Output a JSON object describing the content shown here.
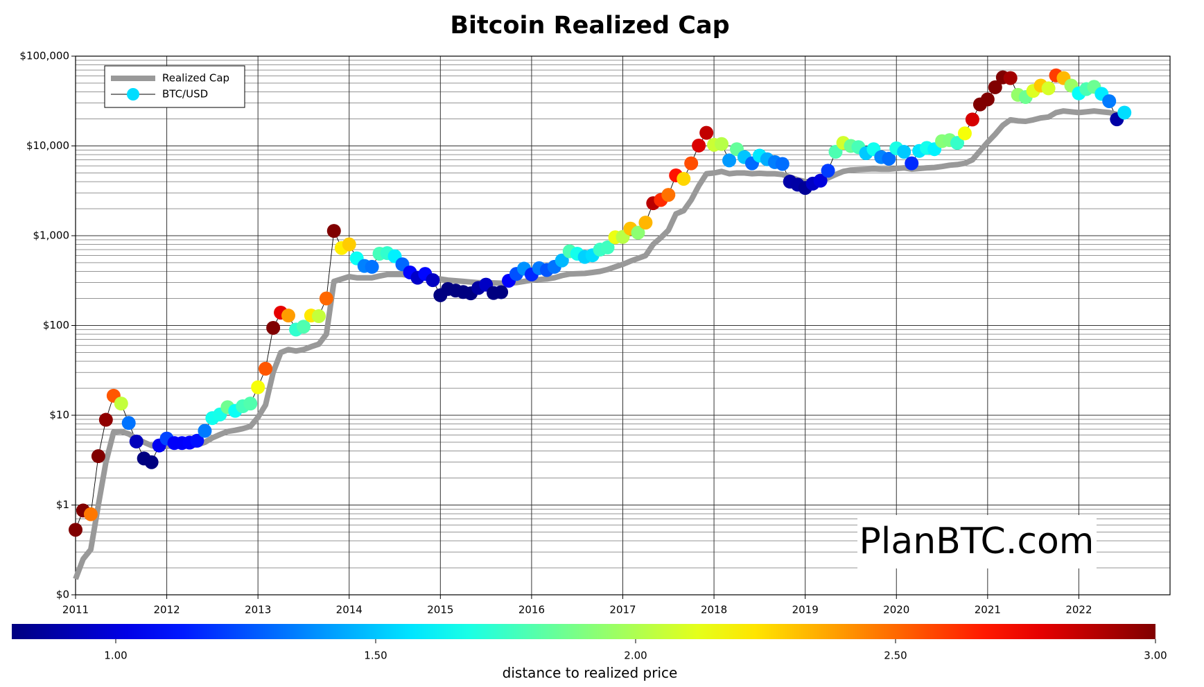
{
  "chart_data": {
    "type": "line_scatter",
    "title": "Bitcoin Realized Cap",
    "x": [
      2011,
      2011.083,
      2011.167,
      2011.25,
      2011.333,
      2011.417,
      2011.5,
      2011.583,
      2011.667,
      2011.75,
      2011.833,
      2011.917,
      2012,
      2012.083,
      2012.167,
      2012.25,
      2012.333,
      2012.417,
      2012.5,
      2012.583,
      2012.667,
      2012.75,
      2012.833,
      2012.917,
      2013,
      2013.083,
      2013.167,
      2013.25,
      2013.333,
      2013.417,
      2013.5,
      2013.583,
      2013.667,
      2013.75,
      2013.833,
      2013.917,
      2014,
      2014.083,
      2014.167,
      2014.25,
      2014.333,
      2014.417,
      2014.5,
      2014.583,
      2014.667,
      2014.75,
      2014.833,
      2014.917,
      2015,
      2015.083,
      2015.167,
      2015.25,
      2015.333,
      2015.417,
      2015.5,
      2015.583,
      2015.667,
      2015.75,
      2015.833,
      2015.917,
      2016,
      2016.083,
      2016.167,
      2016.25,
      2016.333,
      2016.417,
      2016.5,
      2016.583,
      2016.667,
      2016.75,
      2016.833,
      2016.917,
      2017,
      2017.083,
      2017.167,
      2017.25,
      2017.333,
      2017.417,
      2017.5,
      2017.583,
      2017.667,
      2017.75,
      2017.833,
      2017.917,
      2018,
      2018.083,
      2018.167,
      2018.25,
      2018.333,
      2018.417,
      2018.5,
      2018.583,
      2018.667,
      2018.75,
      2018.833,
      2018.917,
      2019,
      2019.083,
      2019.167,
      2019.25,
      2019.333,
      2019.417,
      2019.5,
      2019.583,
      2019.667,
      2019.75,
      2019.833,
      2019.917,
      2020,
      2020.083,
      2020.167,
      2020.25,
      2020.333,
      2020.417,
      2020.5,
      2020.583,
      2020.667,
      2020.75,
      2020.833,
      2020.917,
      2021,
      2021.083,
      2021.167,
      2021.25,
      2021.333,
      2021.417,
      2021.5,
      2021.583,
      2021.667,
      2021.75,
      2021.833,
      2021.917,
      2022,
      2022.083,
      2022.167,
      2022.25,
      2022.333,
      2022.417,
      2022.5
    ],
    "series": [
      {
        "name": "Realized Cap",
        "color": "#999999",
        "values": [
          0.15,
          0.25,
          0.32,
          1.0,
          3.0,
          6.5,
          6.6,
          6.2,
          5.5,
          5.0,
          4.6,
          4.4,
          4.5,
          4.6,
          4.6,
          4.6,
          4.7,
          5.0,
          5.6,
          6.1,
          6.6,
          6.8,
          7.1,
          7.5,
          9.5,
          13,
          30,
          50,
          54,
          52,
          54,
          58,
          62,
          80,
          310,
          330,
          350,
          340,
          340,
          340,
          355,
          370,
          370,
          370,
          360,
          355,
          345,
          340,
          330,
          320,
          315,
          310,
          305,
          300,
          300,
          298,
          296,
          295,
          300,
          310,
          320,
          325,
          330,
          340,
          360,
          375,
          378,
          380,
          390,
          400,
          420,
          450,
          480,
          520,
          560,
          600,
          800,
          950,
          1150,
          1750,
          1900,
          2500,
          3600,
          4900,
          5000,
          5200,
          4900,
          5000,
          5000,
          4900,
          4950,
          4900,
          4900,
          4800,
          4500,
          4200,
          4000,
          4000,
          4100,
          4400,
          4800,
          5200,
          5400,
          5450,
          5500,
          5550,
          5500,
          5500,
          5600,
          5700,
          5500,
          5600,
          5700,
          5750,
          5900,
          6100,
          6200,
          6400,
          7000,
          8800,
          11000,
          13500,
          17000,
          19500,
          19000,
          18800,
          19500,
          20500,
          21000,
          23500,
          24500,
          24000,
          23500,
          24000,
          24500,
          24000,
          23500,
          22500,
          null
        ]
      },
      {
        "name": "BTC/USD",
        "color": "#00ddff",
        "line_color": "#000000",
        "values": [
          0.53,
          0.87,
          0.79,
          3.5,
          8.9,
          16.5,
          13.5,
          8.2,
          5.1,
          3.3,
          3.0,
          4.6,
          5.5,
          4.9,
          4.9,
          4.95,
          5.2,
          6.7,
          9.3,
          10.2,
          12.3,
          11.2,
          12.6,
          13.5,
          20.5,
          33,
          94,
          139,
          129,
          90,
          97,
          129,
          127,
          200,
          1130,
          730,
          800,
          560,
          460,
          450,
          630,
          640,
          590,
          480,
          390,
          340,
          375,
          320,
          217,
          255,
          245,
          236,
          228,
          262,
          285,
          230,
          235,
          315,
          375,
          430,
          370,
          435,
          415,
          450,
          530,
          670,
          630,
          580,
          605,
          700,
          740,
          960,
          970,
          1200,
          1080,
          1400,
          2300,
          2500,
          2850,
          4700,
          4300,
          6400,
          10100,
          14000,
          10300,
          10500,
          6900,
          9200,
          7500,
          6400,
          7800,
          7100,
          6600,
          6300,
          4000,
          3700,
          3400,
          3800,
          4100,
          5300,
          8600,
          10800,
          10000,
          9700,
          8300,
          9200,
          7500,
          7200,
          9400,
          8600,
          6400,
          8800,
          9500,
          9200,
          11300,
          11600,
          10800,
          13800,
          19700,
          29000,
          33000,
          45000,
          58000,
          57000,
          37000,
          35000,
          41000,
          47000,
          43800,
          61000,
          57000,
          47000,
          38500,
          43000,
          45500,
          38000,
          31500,
          19800,
          23500
        ]
      }
    ],
    "xlim": [
      2011,
      2023
    ],
    "xticks": [
      2011,
      2012,
      2013,
      2014,
      2015,
      2016,
      2017,
      2018,
      2019,
      2020,
      2021,
      2022
    ],
    "ylim": [
      0.1,
      100000
    ],
    "log_scale": true,
    "yticks": [
      {
        "value": 0.1,
        "label": "$0"
      },
      {
        "value": 1,
        "label": "$1"
      },
      {
        "value": 10,
        "label": "$10"
      },
      {
        "value": 100,
        "label": "$100"
      },
      {
        "value": 1000,
        "label": "$1,000"
      },
      {
        "value": 10000,
        "label": "$10,000"
      },
      {
        "value": 100000,
        "label": "$100,000"
      }
    ],
    "grid": true,
    "minor_grid": true,
    "legend": "upper left",
    "annotation": "PlanBTC.com",
    "colorbar": {
      "label": "distance to realized price",
      "colormap": "jet",
      "lim": [
        0.8,
        3.0
      ],
      "ticks": [
        {
          "value": 1,
          "label": "1.00"
        },
        {
          "value": 1.5,
          "label": "1.50"
        },
        {
          "value": 2,
          "label": "2.00"
        },
        {
          "value": 2.5,
          "label": "2.50"
        },
        {
          "value": 3,
          "label": "3.00"
        }
      ]
    }
  }
}
